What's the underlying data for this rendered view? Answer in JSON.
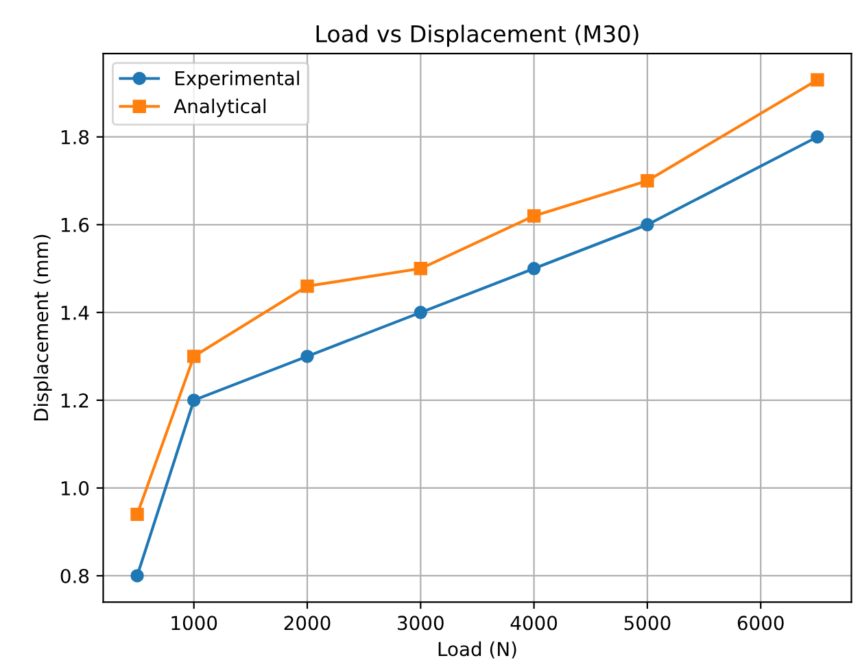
{
  "chart_data": {
    "type": "line",
    "title": "Load vs Displacement (M30)",
    "xlabel": "Load (N)",
    "ylabel": "Displacement (mm)",
    "x": [
      500,
      1000,
      2000,
      3000,
      4000,
      5000,
      6500
    ],
    "series": [
      {
        "name": "Experimental",
        "color": "#1f77b4",
        "marker": "circle",
        "values": [
          0.8,
          1.2,
          1.3,
          1.4,
          1.5,
          1.6,
          1.8
        ]
      },
      {
        "name": "Analytical",
        "color": "#ff7f0e",
        "marker": "square",
        "values": [
          0.94,
          1.3,
          1.46,
          1.5,
          1.62,
          1.7,
          1.93
        ]
      }
    ],
    "xlim": [
      200,
      6800
    ],
    "xticks": [
      1000,
      2000,
      3000,
      4000,
      5000,
      6000
    ],
    "ylim": [
      0.74,
      1.99
    ],
    "yticks": [
      0.8,
      {
        "value": 1,
        "label": "1.0"
      },
      1.2,
      1.4,
      1.6,
      1.8
    ],
    "grid": true,
    "legend": "top left",
    "line_style": "solid"
  }
}
